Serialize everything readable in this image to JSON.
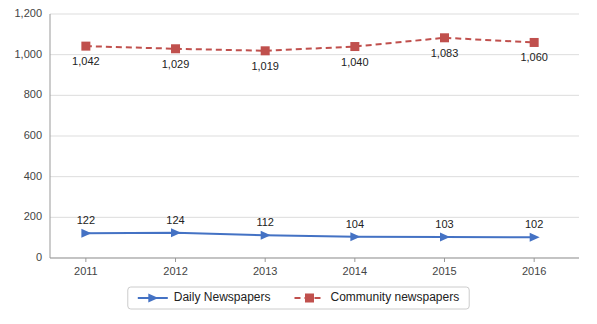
{
  "chart_data": {
    "type": "line",
    "x": [
      2011,
      2012,
      2013,
      2014,
      2015,
      2016
    ],
    "xlim": [
      2010.6,
      2016.5
    ],
    "xticks": [
      2011,
      2012,
      2013,
      2014,
      2015,
      2016
    ],
    "ylim": [
      0,
      1200
    ],
    "yticks": [
      0,
      200,
      400,
      600,
      800,
      {
        "value": 1000,
        "label": "1,000"
      },
      {
        "value": 1200,
        "label": "1,200"
      }
    ],
    "grid": true,
    "legend": "bottom",
    "data_labels": true,
    "series": [
      {
        "name": "Daily Newspapers",
        "color": "#4472C4",
        "marker": "triangle-right",
        "line_style": "solid",
        "values": [
          122,
          124,
          112,
          104,
          103,
          102
        ]
      },
      {
        "name": "Community newspapers",
        "color": "#C0504D",
        "marker": "square",
        "line_style": "dashed",
        "values": [
          1042,
          1029,
          1019,
          1040,
          1083,
          1060
        ],
        "value_labels": [
          "1,042",
          "1,029",
          "1,019",
          "1,040",
          "1,083",
          "1,060"
        ]
      }
    ]
  }
}
